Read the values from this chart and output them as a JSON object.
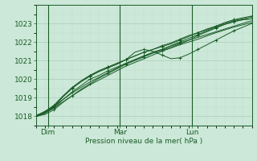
{
  "xlabel": "Pression niveau de la mer( hPa )",
  "bg_color": "#cce8d8",
  "grid_major_color": "#aaccbb",
  "grid_minor_color": "#bbddcc",
  "line_color": "#1a5c28",
  "xlim": [
    0,
    72
  ],
  "ylim": [
    1017.5,
    1023.7
  ],
  "yticks": [
    1018,
    1019,
    1020,
    1021,
    1022,
    1023
  ],
  "xtick_labels": [
    "Dim",
    "Mar",
    "Lun"
  ],
  "xtick_positions": [
    4,
    28,
    52
  ],
  "vline_positions": [
    4,
    28,
    52
  ],
  "series": [
    {
      "x": [
        0,
        3,
        6,
        9,
        12,
        15,
        18,
        21,
        24,
        27,
        30,
        33,
        36,
        39,
        42,
        45,
        48,
        51,
        54,
        57,
        60,
        63,
        66,
        69,
        72
      ],
      "y": [
        1018.0,
        1018.15,
        1018.45,
        1018.9,
        1019.3,
        1019.65,
        1020.0,
        1020.2,
        1020.45,
        1020.65,
        1020.85,
        1021.05,
        1021.25,
        1021.45,
        1021.6,
        1021.8,
        1022.0,
        1022.2,
        1022.4,
        1022.6,
        1022.8,
        1022.95,
        1023.1,
        1023.2,
        1023.25
      ],
      "marker": true
    },
    {
      "x": [
        0,
        3,
        6,
        9,
        12,
        15,
        18,
        21,
        24,
        27,
        30,
        33,
        36,
        39,
        42,
        45,
        48,
        51,
        54,
        57,
        60,
        63,
        66,
        69,
        72
      ],
      "y": [
        1018.0,
        1018.2,
        1018.5,
        1019.05,
        1019.5,
        1019.9,
        1020.2,
        1020.45,
        1020.65,
        1020.85,
        1021.05,
        1021.45,
        1021.6,
        1021.5,
        1021.3,
        1021.1,
        1021.15,
        1021.35,
        1021.6,
        1021.85,
        1022.1,
        1022.35,
        1022.6,
        1022.8,
        1023.0
      ],
      "marker": true
    },
    {
      "x": [
        0,
        3,
        6,
        9,
        12,
        15,
        18,
        21,
        24,
        27,
        30,
        33,
        36,
        39,
        42,
        45,
        48,
        51,
        54,
        57,
        60,
        63,
        66,
        69,
        72
      ],
      "y": [
        1018.0,
        1018.1,
        1018.35,
        1018.75,
        1019.1,
        1019.45,
        1019.75,
        1020.05,
        1020.3,
        1020.55,
        1020.8,
        1021.0,
        1021.2,
        1021.4,
        1021.55,
        1021.7,
        1021.9,
        1022.1,
        1022.35,
        1022.55,
        1022.75,
        1022.95,
        1023.1,
        1023.2,
        1023.25
      ],
      "marker": true
    },
    {
      "x": [
        0,
        3,
        6,
        9,
        12,
        15,
        18,
        21,
        24,
        27,
        30,
        33,
        36,
        39,
        42,
        45,
        48,
        51,
        54,
        57,
        60,
        63,
        66,
        69,
        72
      ],
      "y": [
        1018.05,
        1018.25,
        1018.6,
        1019.1,
        1019.55,
        1019.9,
        1020.2,
        1020.45,
        1020.65,
        1020.85,
        1021.05,
        1021.25,
        1021.45,
        1021.6,
        1021.75,
        1021.9,
        1022.1,
        1022.3,
        1022.5,
        1022.65,
        1022.85,
        1023.0,
        1023.15,
        1023.25,
        1023.35
      ],
      "marker": true
    },
    {
      "x": [
        0,
        3,
        6,
        9,
        12,
        15,
        18,
        21,
        24,
        27,
        30,
        33,
        36,
        39,
        42,
        45,
        48,
        51,
        54,
        57,
        60,
        63,
        66,
        69,
        72
      ],
      "y": [
        1018.0,
        1018.2,
        1018.55,
        1019.05,
        1019.5,
        1019.85,
        1020.15,
        1020.4,
        1020.6,
        1020.8,
        1021.05,
        1021.25,
        1021.45,
        1021.6,
        1021.8,
        1021.95,
        1022.15,
        1022.35,
        1022.5,
        1022.7,
        1022.85,
        1023.05,
        1023.2,
        1023.3,
        1023.4
      ],
      "marker": true
    },
    {
      "x": [
        0,
        6,
        12,
        18,
        24,
        30,
        36,
        42,
        48,
        54,
        60,
        66,
        72
      ],
      "y": [
        1018.0,
        1018.55,
        1019.25,
        1019.85,
        1020.35,
        1020.85,
        1021.25,
        1021.6,
        1021.95,
        1022.25,
        1022.55,
        1022.85,
        1023.15
      ],
      "marker": false
    },
    {
      "x": [
        0,
        6,
        12,
        18,
        24,
        30,
        36,
        42,
        48,
        54,
        60,
        66,
        72
      ],
      "y": [
        1018.0,
        1018.45,
        1019.1,
        1019.7,
        1020.2,
        1020.7,
        1021.1,
        1021.5,
        1021.85,
        1022.15,
        1022.5,
        1022.8,
        1023.05
      ],
      "marker": false
    }
  ]
}
